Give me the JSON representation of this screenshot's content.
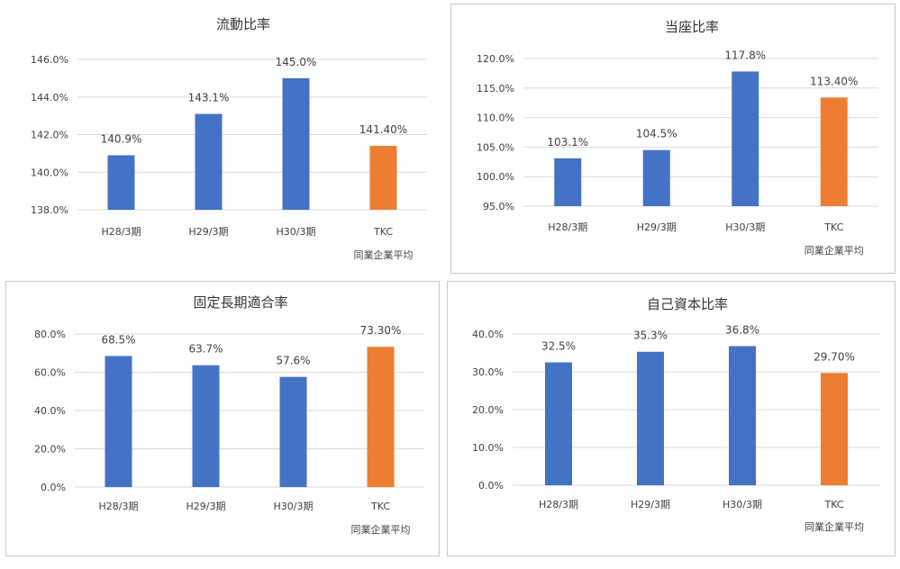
{
  "colors": {
    "series": "#4472c4",
    "highlight": "#ed7d31",
    "grid": "#d9d9d9",
    "text": "#404040"
  },
  "chart_data": [
    {
      "type": "bar",
      "title": "流動比率",
      "xlabel": "",
      "ylabel": "",
      "categories": [
        "H28/3期",
        "H29/3期",
        "H30/3期",
        "TKC"
      ],
      "sublabel": "同業企業平均",
      "values": [
        140.9,
        143.1,
        145.0,
        141.4
      ],
      "data_labels": [
        "140.9%",
        "143.1%",
        "145.0%",
        "141.40%"
      ],
      "ylim": [
        138,
        146
      ],
      "yticks": [
        138,
        140,
        142,
        144,
        146
      ],
      "ytick_labels": [
        "138.0%",
        "140.0%",
        "142.0%",
        "144.0%",
        "146.0%"
      ],
      "highlight_index": 3,
      "grid": true
    },
    {
      "type": "bar",
      "title": "当座比率",
      "xlabel": "",
      "ylabel": "",
      "categories": [
        "H28/3期",
        "H29/3期",
        "H30/3期",
        "TKC"
      ],
      "sublabel": "同業企業平均",
      "values": [
        103.1,
        104.5,
        117.8,
        113.4
      ],
      "data_labels": [
        "103.1%",
        "104.5%",
        "117.8%",
        "113.40%"
      ],
      "ylim": [
        95,
        120
      ],
      "yticks": [
        95,
        100,
        105,
        110,
        115,
        120
      ],
      "ytick_labels": [
        "95.0%",
        "100.0%",
        "105.0%",
        "110.0%",
        "115.0%",
        "120.0%"
      ],
      "highlight_index": 3,
      "grid": true
    },
    {
      "type": "bar",
      "title": "固定長期適合率",
      "xlabel": "",
      "ylabel": "",
      "categories": [
        "H28/3期",
        "H29/3期",
        "H30/3期",
        "TKC"
      ],
      "sublabel": "同業企業平均",
      "values": [
        68.5,
        63.7,
        57.6,
        73.3
      ],
      "data_labels": [
        "68.5%",
        "63.7%",
        "57.6%",
        "73.30%"
      ],
      "ylim": [
        0,
        80
      ],
      "yticks": [
        0,
        20,
        40,
        60,
        80
      ],
      "ytick_labels": [
        "0.0%",
        "20.0%",
        "40.0%",
        "60.0%",
        "80.0%"
      ],
      "highlight_index": 3,
      "grid": true
    },
    {
      "type": "bar",
      "title": "自己資本比率",
      "xlabel": "",
      "ylabel": "",
      "categories": [
        "H28/3期",
        "H29/3期",
        "H30/3期",
        "TKC"
      ],
      "sublabel": "同業企業平均",
      "values": [
        32.5,
        35.3,
        36.8,
        29.7
      ],
      "data_labels": [
        "32.5%",
        "35.3%",
        "36.8%",
        "29.70%"
      ],
      "ylim": [
        0,
        40
      ],
      "yticks": [
        0,
        10,
        20,
        30,
        40
      ],
      "ytick_labels": [
        "0.0%",
        "10.0%",
        "20.0%",
        "30.0%",
        "40.0%"
      ],
      "highlight_index": 3,
      "grid": true
    }
  ]
}
